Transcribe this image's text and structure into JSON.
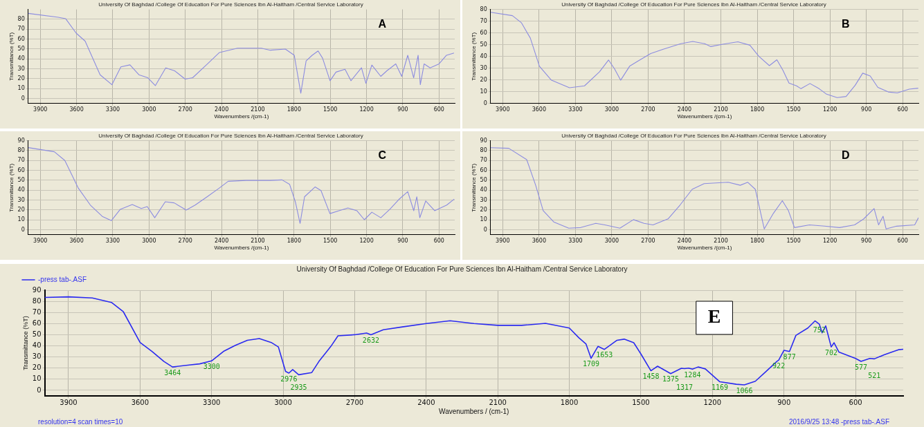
{
  "chart_data": [
    {
      "type": "line",
      "title": "University Of Baghdad /College Of Education For Pure Sciences Ibn Al-Haitham /Central Service Laboratory",
      "xlabel": "Wavenumbers /(cm-1)",
      "ylabel": "Transmittance (%T)",
      "annotations": [
        "A"
      ],
      "grid": true,
      "marker": "none",
      "xlim": [
        4000,
        470
      ],
      "xticks": [
        3900,
        3600,
        3300,
        3000,
        2700,
        2400,
        2100,
        1800,
        1500,
        1200,
        900,
        600
      ],
      "ylim": [
        -5,
        90
      ],
      "yticks": [
        0,
        10,
        20,
        30,
        40,
        50,
        60,
        70,
        80
      ],
      "x": [
        4000,
        3752,
        3690,
        3603,
        3529,
        3405,
        3307,
        3233,
        3158,
        3084,
        3010,
        2948,
        2862,
        2788,
        2701,
        2639,
        2516,
        2417,
        2268,
        2071,
        1996,
        1872,
        1798,
        1744,
        1700,
        1650,
        1601,
        1564,
        1502,
        1453,
        1378,
        1329,
        1242,
        1205,
        1156,
        1082,
        1032,
        958,
        909,
        859,
        810,
        773,
        755,
        723,
        674,
        600,
        538,
        476
      ],
      "series": [
        {
          "color": "#8c8ce0",
          "values": [
            86,
            82,
            80.6,
            66,
            58,
            24,
            14,
            32,
            34,
            24,
            21,
            13,
            31,
            28,
            19.6,
            21,
            35,
            46.5,
            50.8,
            50.8,
            48.8,
            50,
            43.7,
            5.4,
            38,
            43.7,
            48,
            40.8,
            18,
            26.7,
            29.5,
            18,
            31,
            15.3,
            33.8,
            22.4,
            28,
            35,
            22.4,
            43.7,
            21,
            43.7,
            14,
            35,
            31,
            35,
            43.7,
            46
          ]
        }
      ]
    },
    {
      "type": "line",
      "title": "University Of Baghdad /College Of Education For Pure Sciences Ibn Al-Haitham /Central Service Laboratory",
      "xlabel": "Wavenumbers /(cm-1)",
      "ylabel": "Transmittance (%T)",
      "annotations": [
        "B"
      ],
      "grid": true,
      "marker": "none",
      "xlim": [
        4000,
        470
      ],
      "xticks": [
        3900,
        3600,
        3300,
        3000,
        2700,
        2400,
        2100,
        1800,
        1500,
        1200,
        900,
        600
      ],
      "ylim": [
        0,
        80
      ],
      "yticks": [
        0,
        10,
        20,
        30,
        40,
        50,
        60,
        70,
        80
      ],
      "x": [
        4000,
        3820,
        3746,
        3672,
        3597,
        3498,
        3349,
        3225,
        3101,
        3027,
        2977,
        2927,
        2853,
        2778,
        2679,
        2580,
        2431,
        2332,
        2233,
        2183,
        2084,
        1960,
        1861,
        1786,
        1700,
        1638,
        1588,
        1538,
        1476,
        1439,
        1365,
        1290,
        1228,
        1141,
        1067,
        992,
        930,
        868,
        806,
        719,
        645,
        546,
        472
      ],
      "series": [
        {
          "color": "#8c8ce0",
          "values": [
            77.6,
            74.7,
            68.7,
            55.6,
            31.7,
            19.8,
            13.4,
            15,
            27,
            37,
            29.4,
            19.8,
            31.7,
            36.5,
            42.5,
            46,
            50.8,
            52.7,
            50.8,
            48.4,
            50.4,
            52.5,
            49.6,
            40,
            32.2,
            37.2,
            28.2,
            17.4,
            15,
            12.6,
            17,
            12.6,
            7.9,
            5,
            6,
            15.5,
            25.8,
            23.4,
            13.8,
            9.8,
            9,
            12.2,
            13
          ]
        }
      ]
    },
    {
      "type": "line",
      "title": "University Of Baghdad /College Of Education For Pure Sciences Ibn Al-Haitham /Central Service Laboratory",
      "xlabel": "Wavenumbers /(cm-1)",
      "ylabel": "Transmittance (%T)",
      "annotations": [
        "C"
      ],
      "grid": true,
      "marker": "none",
      "xlim": [
        4000,
        470
      ],
      "xticks": [
        3900,
        3600,
        3300,
        3000,
        2700,
        2400,
        2100,
        1800,
        1500,
        1200,
        900,
        600
      ],
      "ylim": [
        -5,
        90
      ],
      "yticks": [
        0,
        10,
        20,
        30,
        40,
        50,
        60,
        70,
        80,
        90
      ],
      "x": [
        4000,
        3784,
        3697,
        3585,
        3486,
        3387,
        3312,
        3238,
        3139,
        3064,
        3015,
        2953,
        2866,
        2792,
        2692,
        2618,
        2519,
        2420,
        2345,
        2197,
        1998,
        1899,
        1837,
        1788,
        1750,
        1713,
        1626,
        1577,
        1503,
        1428,
        1354,
        1280,
        1218,
        1156,
        1082,
        1007,
        933,
        859,
        809,
        784,
        759,
        710,
        636,
        536,
        474
      ],
      "series": [
        {
          "color": "#8c8ce0",
          "values": [
            83,
            78.8,
            70,
            42,
            25,
            13.6,
            9.3,
            20.7,
            25.5,
            21.5,
            23.5,
            12.2,
            28.3,
            27.2,
            20,
            25,
            33.4,
            42,
            49,
            49.9,
            49.9,
            50.4,
            46,
            27.8,
            6.5,
            33.4,
            43.3,
            39.7,
            16.4,
            19.3,
            22,
            19.3,
            10.2,
            17.8,
            12.2,
            20.7,
            30.6,
            38.5,
            19.3,
            33.4,
            12.2,
            29.2,
            19.3,
            25,
            31
          ]
        }
      ]
    },
    {
      "type": "line",
      "title": "University Of Baghdad /College Of Education For Pure Sciences Ibn Al-Haitham /Central Service Laboratory",
      "xlabel": "Wavenumbers /(cm-1)",
      "ylabel": "Transmittance (%T)",
      "annotations": [
        "D"
      ],
      "grid": true,
      "marker": "none",
      "xlim": [
        4000,
        470
      ],
      "xticks": [
        3900,
        3600,
        3300,
        3000,
        2700,
        2400,
        2100,
        1800,
        1500,
        1200,
        900,
        600
      ],
      "ylim": [
        -5,
        90
      ],
      "yticks": [
        0,
        10,
        20,
        30,
        40,
        50,
        60,
        70,
        80,
        90
      ],
      "x": [
        4000,
        3850,
        3702,
        3628,
        3566,
        3479,
        3355,
        3256,
        3132,
        3057,
        2933,
        2821,
        2734,
        2660,
        2536,
        2437,
        2337,
        2238,
        2040,
        1940,
        1878,
        1816,
        1742,
        1667,
        1593,
        1543,
        1493,
        1369,
        1245,
        1121,
        997,
        923,
        836,
        799,
        762,
        737,
        650,
        501,
        470
      ],
      "series": [
        {
          "color": "#8c8ce0",
          "values": [
            82.9,
            82.3,
            70.9,
            45,
            19.4,
            8,
            1.7,
            2.3,
            6.6,
            5,
            1.7,
            10.3,
            6.6,
            5,
            11,
            25,
            40.9,
            46.6,
            48,
            45,
            48,
            40.9,
            0.9,
            16.6,
            29.4,
            19.4,
            2.3,
            5,
            3.7,
            2.3,
            5,
            10.9,
            21.4,
            5,
            13.7,
            0.9,
            3.7,
            5,
            12.3
          ]
        }
      ]
    },
    {
      "type": "line",
      "title": "University Of Baghdad /College Of Education For Pure Sciences Ibn Al-Haitham /Central Service Laboratory",
      "xlabel": "Wavenumbers / (cm-1)",
      "ylabel": "Transmittance (%T)",
      "legend": "top left",
      "grid": true,
      "marker": "none",
      "xlim": [
        4000,
        400
      ],
      "xticks": [
        3900,
        3600,
        3300,
        3000,
        2700,
        2400,
        2100,
        1800,
        1500,
        1200,
        900,
        600
      ],
      "ylim": [
        -5,
        90
      ],
      "yticks": [
        0,
        10,
        20,
        30,
        40,
        50,
        60,
        70,
        80,
        90
      ],
      "annotations": [
        "E",
        "resolution=4 scan times=10",
        "2016/9/25 13:48 -press tab-.ASF",
        {
          "text": "3464",
          "x": 3464,
          "y": 21
        },
        {
          "text": "3300",
          "x": 3300,
          "y": 26.5
        },
        {
          "text": "2976",
          "x": 2976,
          "y": 15.5
        },
        {
          "text": "2935",
          "x": 2935,
          "y": 14
        },
        {
          "text": "2632",
          "x": 2632,
          "y": 50
        },
        {
          "text": "1709",
          "x": 1709,
          "y": 28.8
        },
        {
          "text": "1653",
          "x": 1653,
          "y": 36.8
        },
        {
          "text": "1458",
          "x": 1458,
          "y": 17.6
        },
        {
          "text": "1375",
          "x": 1375,
          "y": 15
        },
        {
          "text": "1317",
          "x": 1317,
          "y": 19.8
        },
        {
          "text": "1284",
          "x": 1284,
          "y": 19
        },
        {
          "text": "1169",
          "x": 1169,
          "y": 7.7
        },
        {
          "text": "1066",
          "x": 1066,
          "y": 4.9
        },
        {
          "text": "922",
          "x": 922,
          "y": 27.2
        },
        {
          "text": "877",
          "x": 877,
          "y": 34.9
        },
        {
          "text": "752",
          "x": 752,
          "y": 59.5
        },
        {
          "text": "702",
          "x": 702,
          "y": 39
        },
        {
          "text": "577",
          "x": 577,
          "y": 26
        },
        {
          "text": "521",
          "x": 521,
          "y": 28.3
        }
      ],
      "x": [
        4000,
        3900,
        3800,
        3720,
        3670,
        3600,
        3550,
        3500,
        3464,
        3400,
        3350,
        3300,
        3250,
        3200,
        3150,
        3100,
        3050,
        3020,
        2990,
        2976,
        2960,
        2935,
        2880,
        2850,
        2800,
        2770,
        2700,
        2650,
        2632,
        2580,
        2500,
        2400,
        2300,
        2200,
        2100,
        2000,
        1900,
        1800,
        1760,
        1730,
        1709,
        1680,
        1653,
        1600,
        1570,
        1530,
        1500,
        1458,
        1430,
        1375,
        1330,
        1317,
        1300,
        1284,
        1260,
        1230,
        1169,
        1100,
        1066,
        1020,
        980,
        930,
        922,
        900,
        877,
        850,
        800,
        770,
        752,
        740,
        725,
        702,
        690,
        670,
        600,
        577,
        540,
        521,
        480,
        420,
        400
      ],
      "series": [
        {
          "name": "-press tab-.ASF",
          "color": "#2a2af0",
          "values": [
            83.5,
            84,
            83,
            79,
            70.6,
            43,
            35,
            26,
            21,
            22.6,
            23.8,
            26.5,
            35,
            40.5,
            45,
            46.5,
            43,
            39,
            17,
            15.5,
            18.7,
            14,
            16,
            26,
            39.5,
            49,
            50,
            51.5,
            50,
            54.5,
            57,
            60,
            62.5,
            60,
            58.4,
            58.4,
            60.2,
            56,
            47.2,
            41.6,
            28.8,
            39.5,
            36.8,
            45,
            46,
            42.8,
            32.7,
            17.6,
            21.7,
            15,
            19.8,
            19.5,
            20,
            19,
            21,
            19.3,
            7.7,
            5.5,
            4.9,
            8.2,
            16,
            26,
            27.2,
            36,
            34.9,
            49.4,
            56,
            62.4,
            59.5,
            51.7,
            57.9,
            39,
            42.8,
            34.5,
            28.7,
            26,
            28.7,
            28.3,
            32,
            36.5,
            36.9
          ]
        }
      ]
    }
  ]
}
